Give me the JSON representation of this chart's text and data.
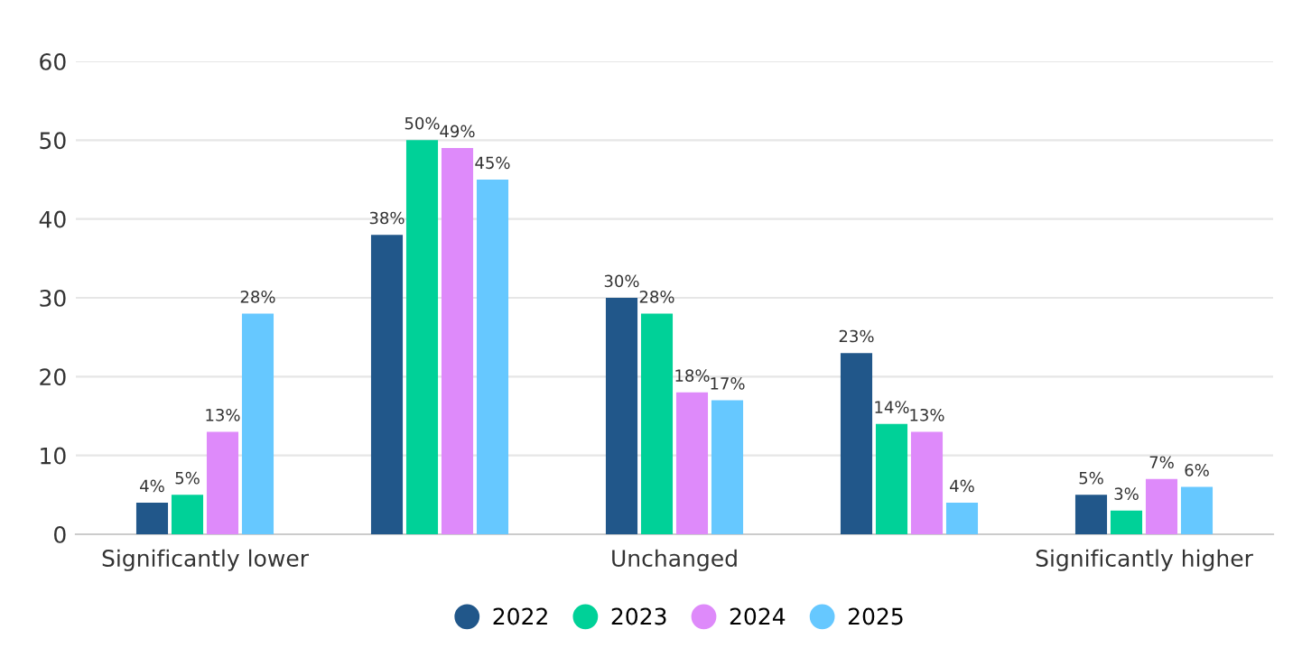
{
  "chart_data": {
    "type": "bar",
    "categories": [
      "Significantly lower",
      null,
      "Unchanged",
      null,
      "Significantly higher"
    ],
    "series": [
      {
        "name": "2022",
        "color": "#21578a",
        "values": [
          4,
          38,
          30,
          23,
          5
        ],
        "value_labels": [
          "4%",
          "38%",
          "30%",
          "23%",
          "5%"
        ]
      },
      {
        "name": "2023",
        "color": "#00d198",
        "values": [
          5,
          50,
          28,
          14,
          3
        ],
        "value_labels": [
          "5%",
          "50%",
          "28%",
          "14%",
          "3%"
        ]
      },
      {
        "name": "2024",
        "color": "#de8afa",
        "values": [
          13,
          49,
          18,
          13,
          7
        ],
        "value_labels": [
          "13%",
          "49%",
          "18%",
          "13%",
          "7%"
        ]
      },
      {
        "name": "2025",
        "color": "#66c8ff",
        "values": [
          28,
          45,
          17,
          4,
          6
        ],
        "value_labels": [
          "28%",
          "45%",
          "17%",
          "4%",
          "6%"
        ]
      }
    ],
    "ylim": [
      0,
      60
    ],
    "yticks": [
      0,
      10,
      20,
      30,
      40,
      50,
      60
    ],
    "grid": "y",
    "legend": "bottom"
  }
}
